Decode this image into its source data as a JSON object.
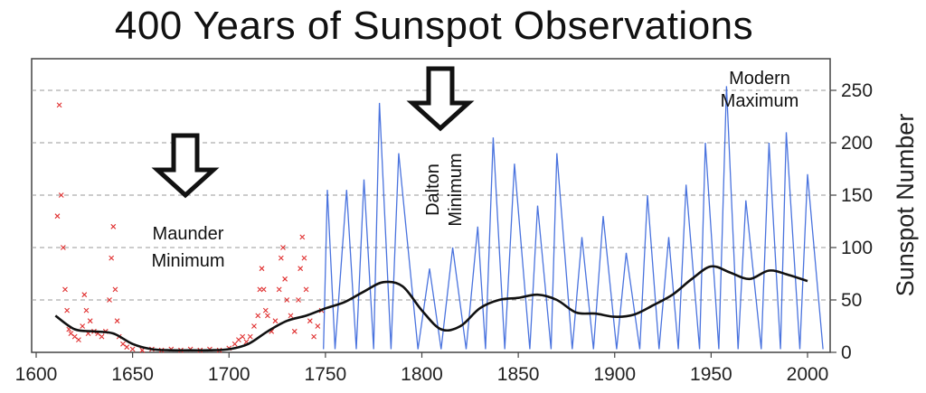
{
  "chart_data": {
    "type": "line",
    "title": "400 Years of Sunspot Observations",
    "ylabel": "Sunspot Number",
    "xlabel": "",
    "xlim": [
      1600,
      2010
    ],
    "ylim": [
      0,
      280
    ],
    "x_ticks": [
      1600,
      1650,
      1700,
      1750,
      1800,
      1850,
      1900,
      1950,
      2000
    ],
    "y_ticks": [
      0,
      50,
      100,
      150,
      200,
      250
    ],
    "y_axis_side": "right",
    "grid": "horizontal-dashed",
    "annotations": [
      {
        "text_lines": [
          "Maunder",
          "Minimum"
        ],
        "x": 1680,
        "y": 105,
        "arrow": true
      },
      {
        "text_lines": [
          "Dalton",
          "Minimum"
        ],
        "x": 1810,
        "y": 170,
        "arrow": true,
        "rotated": true
      },
      {
        "text_lines": [
          "Modern",
          "Maximum"
        ],
        "x": 1957,
        "y": 255,
        "arrow": false
      }
    ],
    "series": [
      {
        "style": "scatter-x",
        "color": "#e03030",
        "x_range": [
          1610,
          1750
        ],
        "points": [
          [
            1611,
            130
          ],
          [
            1612,
            236
          ],
          [
            1613,
            150
          ],
          [
            1614,
            100
          ],
          [
            1615,
            60
          ],
          [
            1616,
            40
          ],
          [
            1617,
            22
          ],
          [
            1618,
            18
          ],
          [
            1620,
            15
          ],
          [
            1622,
            12
          ],
          [
            1624,
            25
          ],
          [
            1625,
            55
          ],
          [
            1626,
            40
          ],
          [
            1627,
            18
          ],
          [
            1628,
            30
          ],
          [
            1630,
            20
          ],
          [
            1632,
            18
          ],
          [
            1634,
            15
          ],
          [
            1636,
            20
          ],
          [
            1638,
            50
          ],
          [
            1639,
            90
          ],
          [
            1640,
            120
          ],
          [
            1641,
            60
          ],
          [
            1642,
            30
          ],
          [
            1643,
            15
          ],
          [
            1645,
            8
          ],
          [
            1647,
            5
          ],
          [
            1650,
            3
          ],
          [
            1655,
            2
          ],
          [
            1660,
            3
          ],
          [
            1665,
            2
          ],
          [
            1670,
            3
          ],
          [
            1675,
            2
          ],
          [
            1680,
            3
          ],
          [
            1685,
            2
          ],
          [
            1690,
            3
          ],
          [
            1695,
            2
          ],
          [
            1700,
            4
          ],
          [
            1703,
            8
          ],
          [
            1705,
            12
          ],
          [
            1707,
            15
          ],
          [
            1709,
            10
          ],
          [
            1711,
            15
          ],
          [
            1713,
            25
          ],
          [
            1715,
            35
          ],
          [
            1716,
            60
          ],
          [
            1717,
            80
          ],
          [
            1718,
            60
          ],
          [
            1719,
            40
          ],
          [
            1720,
            35
          ],
          [
            1722,
            20
          ],
          [
            1724,
            30
          ],
          [
            1726,
            60
          ],
          [
            1727,
            90
          ],
          [
            1728,
            100
          ],
          [
            1729,
            70
          ],
          [
            1730,
            50
          ],
          [
            1732,
            35
          ],
          [
            1734,
            20
          ],
          [
            1736,
            50
          ],
          [
            1737,
            80
          ],
          [
            1738,
            110
          ],
          [
            1739,
            90
          ],
          [
            1740,
            60
          ],
          [
            1742,
            30
          ],
          [
            1744,
            15
          ],
          [
            1746,
            25
          ],
          [
            1748,
            40
          ]
        ]
      },
      {
        "style": "line",
        "color": "#2a5ad8",
        "x_range": [
          1749,
          2008
        ],
        "cycles": [
          {
            "min_year": 1749,
            "max_year": 1751,
            "peak": 155
          },
          {
            "min_year": 1755,
            "max_year": 1761,
            "peak": 155
          },
          {
            "min_year": 1766,
            "max_year": 1770,
            "peak": 165
          },
          {
            "min_year": 1775,
            "max_year": 1778,
            "peak": 238
          },
          {
            "min_year": 1784,
            "max_year": 1788,
            "peak": 190
          },
          {
            "min_year": 1798,
            "max_year": 1804,
            "peak": 80
          },
          {
            "min_year": 1810,
            "max_year": 1816,
            "peak": 100
          },
          {
            "min_year": 1823,
            "max_year": 1829,
            "peak": 120
          },
          {
            "min_year": 1833,
            "max_year": 1837,
            "peak": 205
          },
          {
            "min_year": 1843,
            "max_year": 1848,
            "peak": 180
          },
          {
            "min_year": 1856,
            "max_year": 1860,
            "peak": 140
          },
          {
            "min_year": 1867,
            "max_year": 1870,
            "peak": 190
          },
          {
            "min_year": 1878,
            "max_year": 1883,
            "peak": 110
          },
          {
            "min_year": 1889,
            "max_year": 1894,
            "peak": 130
          },
          {
            "min_year": 1901,
            "max_year": 1906,
            "peak": 95
          },
          {
            "min_year": 1913,
            "max_year": 1917,
            "peak": 150
          },
          {
            "min_year": 1923,
            "max_year": 1928,
            "peak": 110
          },
          {
            "min_year": 1933,
            "max_year": 1937,
            "peak": 160
          },
          {
            "min_year": 1944,
            "max_year": 1947,
            "peak": 200
          },
          {
            "min_year": 1954,
            "max_year": 1958,
            "peak": 254
          },
          {
            "min_year": 1964,
            "max_year": 1968,
            "peak": 145
          },
          {
            "min_year": 1976,
            "max_year": 1980,
            "peak": 200
          },
          {
            "min_year": 1986,
            "max_year": 1989,
            "peak": 210
          },
          {
            "min_year": 1996,
            "max_year": 2000,
            "peak": 170
          },
          {
            "min_year": 2008,
            "max_year": 2008,
            "peak": 3
          }
        ]
      },
      {
        "style": "smooth",
        "color": "#111111",
        "x": [
          1610,
          1620,
          1630,
          1640,
          1650,
          1660,
          1670,
          1680,
          1690,
          1700,
          1710,
          1720,
          1730,
          1740,
          1750,
          1760,
          1770,
          1780,
          1790,
          1800,
          1810,
          1820,
          1830,
          1840,
          1850,
          1860,
          1870,
          1880,
          1890,
          1900,
          1910,
          1920,
          1930,
          1940,
          1950,
          1960,
          1970,
          1980,
          1990,
          2000
        ],
        "y": [
          35,
          22,
          20,
          18,
          8,
          3,
          2,
          2,
          2,
          3,
          8,
          20,
          30,
          35,
          42,
          48,
          58,
          67,
          63,
          40,
          22,
          25,
          42,
          50,
          52,
          55,
          50,
          38,
          37,
          34,
          36,
          45,
          55,
          70,
          82,
          76,
          70,
          78,
          74,
          68
        ]
      }
    ]
  }
}
